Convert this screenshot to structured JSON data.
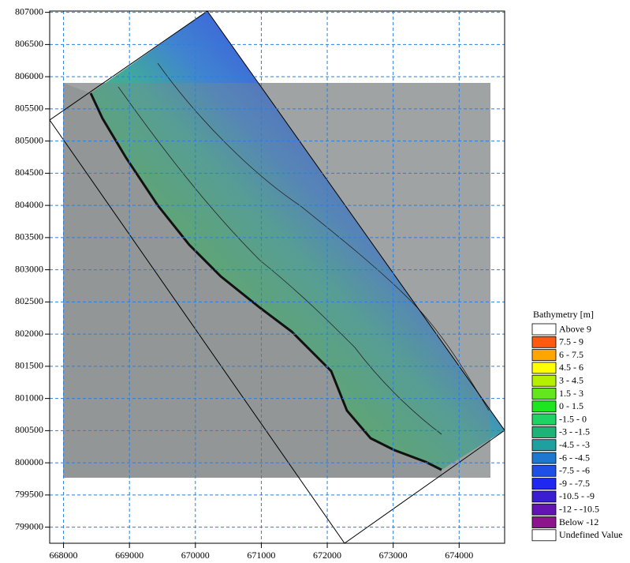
{
  "chart_data": {
    "type": "map",
    "xlim": [
      667790,
      674690
    ],
    "ylim": [
      798750,
      807020
    ],
    "xticks": [
      668000,
      669000,
      670000,
      671000,
      672000,
      673000,
      674000
    ],
    "yticks": [
      799000,
      799500,
      800000,
      800500,
      801000,
      801500,
      802000,
      802500,
      803000,
      803500,
      804000,
      804500,
      805000,
      805500,
      806000,
      806500,
      807000
    ],
    "grid": true,
    "legend": {
      "title": "Bathymetry [m]",
      "entries": [
        {
          "label": "Above 9",
          "color": "#ffffff"
        },
        {
          "label": "7.5 - 9",
          "color": "#ff5a10"
        },
        {
          "label": "6 - 7.5",
          "color": "#ffa500"
        },
        {
          "label": "4.5 - 6",
          "color": "#ffff00"
        },
        {
          "label": "3 - 4.5",
          "color": "#b4f000"
        },
        {
          "label": "1.5 - 3",
          "color": "#64e61e"
        },
        {
          "label": "0 - 1.5",
          "color": "#1ee61e"
        },
        {
          "label": "-1.5 - 0",
          "color": "#1ed264"
        },
        {
          "label": "-3 - -1.5",
          "color": "#1eb478"
        },
        {
          "label": "-4.5 - -3",
          "color": "#1ea0a0"
        },
        {
          "label": "-6 - -4.5",
          "color": "#1e78d2"
        },
        {
          "label": "-7.5 - -6",
          "color": "#1e50e6"
        },
        {
          "label": "-9 - -7.5",
          "color": "#1e28f0"
        },
        {
          "label": "-10.5 - -9",
          "color": "#3c1ed2"
        },
        {
          "label": "-12 - -10.5",
          "color": "#6414b4"
        },
        {
          "label": "Below -12",
          "color": "#8c148c"
        },
        {
          "label": "Undefined Value",
          "color": "#ffffff"
        }
      ]
    }
  }
}
